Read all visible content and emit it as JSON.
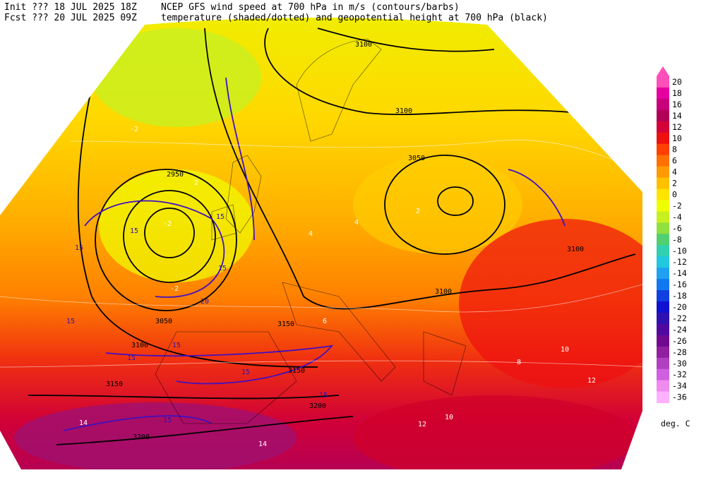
{
  "header": {
    "line1_left": "Init  ??? 18 JUL 2025 18Z",
    "line1_right": "NCEP GFS wind speed at 700 hPa in m/s (contours/barbs)",
    "line2_left": "Fcst ??? 20 JUL 2025 09Z",
    "line2_right": "temperature (shaded/dotted) and geopotential height at 700 hPa (black)"
  },
  "colorbar": {
    "labels": [
      20,
      18,
      16,
      14,
      12,
      10,
      8,
      6,
      4,
      2,
      0,
      -2,
      -4,
      -6,
      -8,
      -10,
      -12,
      -14,
      -16,
      -18,
      -20,
      -22,
      -24,
      -26,
      -28,
      -30,
      -32,
      -34,
      -36
    ],
    "colors": [
      "#ff4fb8",
      "#e600a0",
      "#c8007a",
      "#b00058",
      "#d4003a",
      "#ee1010",
      "#ff4000",
      "#ff7000",
      "#ff9a00",
      "#ffc000",
      "#ffe400",
      "#f0ff00",
      "#c8f020",
      "#90e040",
      "#50d070",
      "#30d0b0",
      "#20c8e0",
      "#20a0f0",
      "#1078f0",
      "#1040e0",
      "#1010d0",
      "#3010b0",
      "#5008a0",
      "#700890",
      "#9020a0",
      "#b040c0",
      "#d060e0",
      "#f08cf0",
      "#ffb0ff"
    ],
    "unit": "deg. C"
  },
  "map_labels": {
    "height": [
      "3100",
      "3100",
      "3050",
      "2950",
      "3050",
      "3100",
      "3150",
      "3200",
      "3200",
      "3150",
      "3100",
      "3100",
      "3150"
    ],
    "wind": [
      "15",
      "15",
      "15",
      "15",
      "15",
      "15",
      "15",
      "15",
      "15",
      "15",
      "20"
    ],
    "temperature": [
      "-2",
      "-2",
      "-2",
      "2",
      "4",
      "4",
      "2",
      "6",
      "8",
      "10",
      "12",
      "12",
      "14",
      "14",
      "10"
    ]
  }
}
